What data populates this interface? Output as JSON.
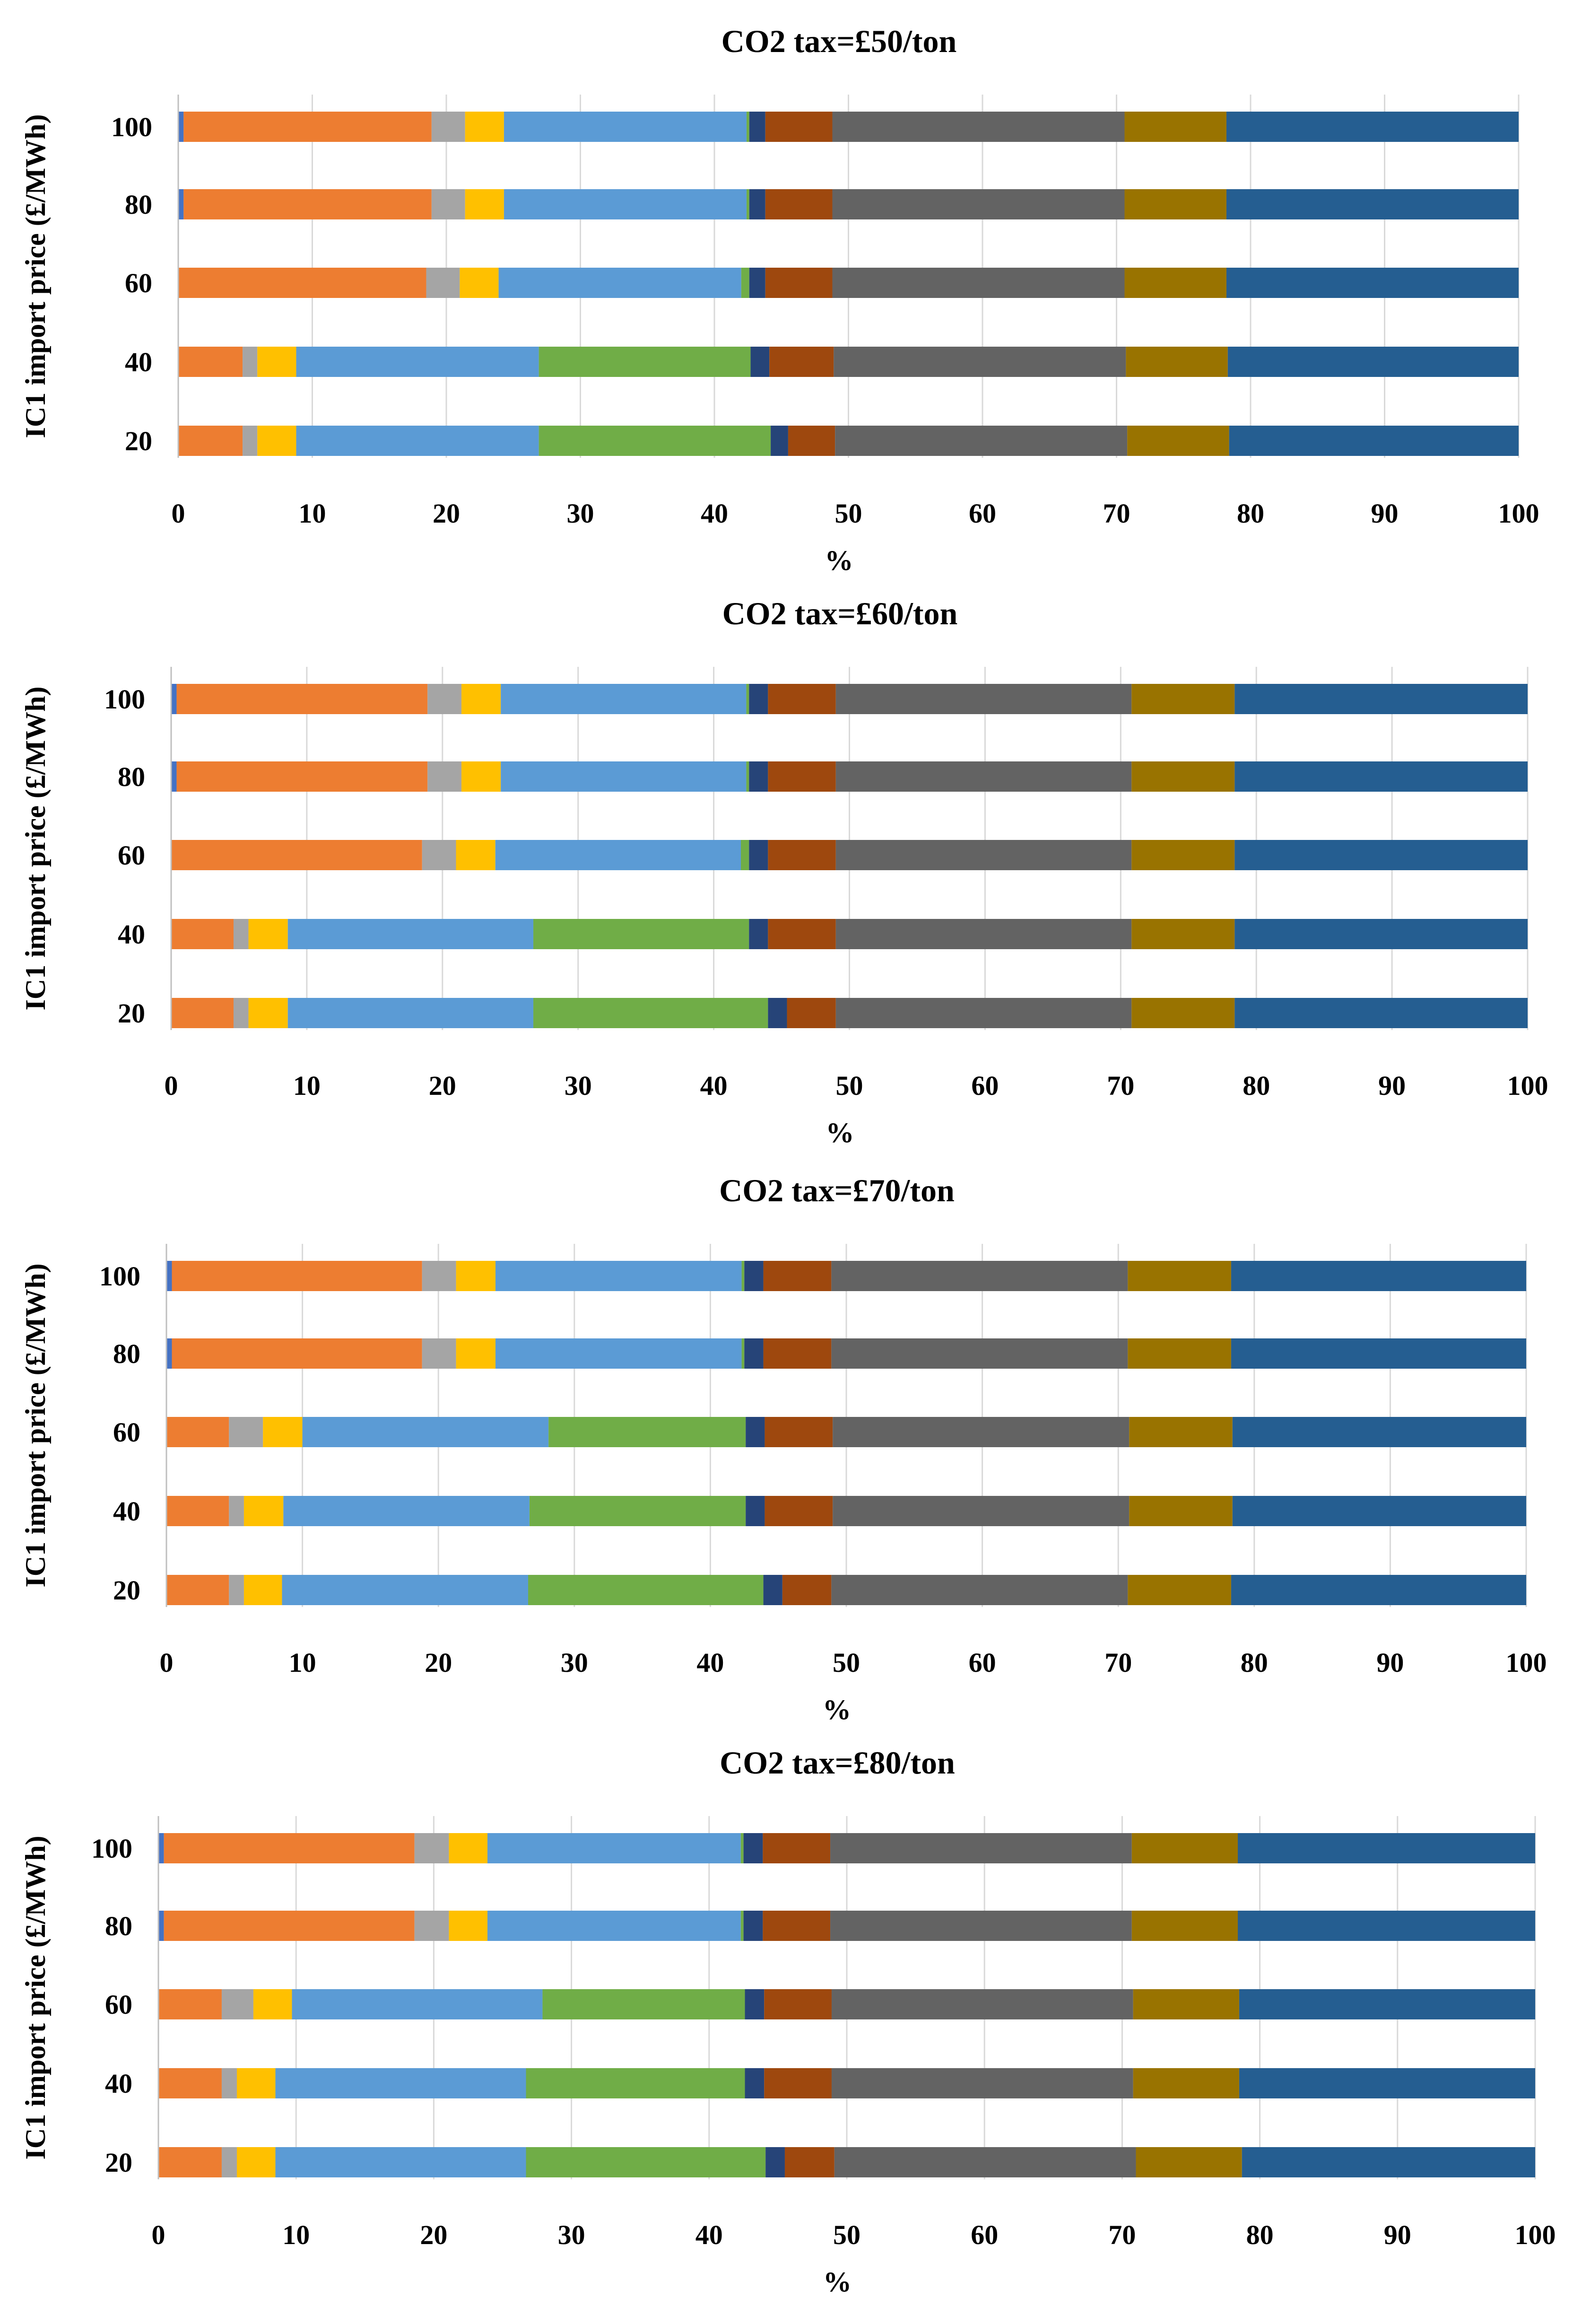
{
  "series_colors": [
    "#4472C4",
    "#ED7D31",
    "#A5A5A5",
    "#FFC000",
    "#5B9BD5",
    "#70AD47",
    "#264478",
    "#9E480E",
    "#636363",
    "#997300",
    "#255E91"
  ],
  "chart_data": [
    {
      "type": "bar",
      "orientation": "horizontal",
      "stacked": true,
      "title": "CO2 tax=£50/ton",
      "xlabel": "%",
      "ylabel": "IC1 import price  (£/MWh)",
      "xlim": [
        0,
        100
      ],
      "xticks": [
        "0",
        "10",
        "20",
        "30",
        "40",
        "50",
        "60",
        "70",
        "80",
        "90",
        "100"
      ],
      "categories": [
        "100",
        "80",
        "60",
        "40",
        "20"
      ],
      "grid": "vertical",
      "segments": [
        [
          0.4,
          18.5,
          2.5,
          2.9,
          18.1,
          0.2,
          1.2,
          5.0,
          21.8,
          7.6,
          21.8
        ],
        [
          0.4,
          18.5,
          2.5,
          2.9,
          18.1,
          0.2,
          1.2,
          5.0,
          21.8,
          7.6,
          21.8
        ],
        [
          0,
          18.5,
          2.5,
          2.9,
          18.1,
          0.6,
          1.2,
          5.0,
          21.8,
          7.6,
          21.8
        ],
        [
          0,
          4.8,
          1.1,
          2.9,
          18.1,
          15.8,
          1.4,
          4.8,
          21.8,
          7.6,
          21.7
        ],
        [
          0,
          4.8,
          1.1,
          2.9,
          18.1,
          17.3,
          1.3,
          3.5,
          21.8,
          7.6,
          21.6
        ]
      ]
    },
    {
      "type": "bar",
      "orientation": "horizontal",
      "stacked": true,
      "title": "CO2 tax=£60/ton",
      "xlabel": "%",
      "ylabel": "IC1 import price  (£/MWh)",
      "xlim": [
        0,
        100
      ],
      "xticks": [
        "0",
        "10",
        "20",
        "30",
        "40",
        "50",
        "60",
        "70",
        "80",
        "90",
        "100"
      ],
      "categories": [
        "100",
        "80",
        "60",
        "40",
        "20"
      ],
      "grid": "vertical",
      "segments": [
        [
          0.4,
          18.5,
          2.5,
          2.9,
          18.1,
          0.2,
          1.4,
          5.0,
          21.8,
          7.6,
          21.6
        ],
        [
          0.4,
          18.5,
          2.5,
          2.9,
          18.1,
          0.2,
          1.4,
          5.0,
          21.8,
          7.6,
          21.6
        ],
        [
          0,
          18.5,
          2.5,
          2.9,
          18.1,
          0.6,
          1.4,
          5.0,
          21.8,
          7.6,
          21.6
        ],
        [
          0,
          4.6,
          1.1,
          2.9,
          18.1,
          15.9,
          1.4,
          5.0,
          21.8,
          7.6,
          21.6
        ],
        [
          0,
          4.6,
          1.1,
          2.9,
          18.1,
          17.3,
          1.4,
          3.6,
          21.8,
          7.6,
          21.6
        ]
      ]
    },
    {
      "type": "bar",
      "orientation": "horizontal",
      "stacked": true,
      "title": "CO2 tax=£70/ton",
      "xlabel": "%",
      "ylabel": "IC1 import price  (£/MWh)",
      "xlim": [
        0,
        100
      ],
      "xticks": [
        "0",
        "10",
        "20",
        "30",
        "40",
        "50",
        "60",
        "70",
        "80",
        "90",
        "100"
      ],
      "categories": [
        "100",
        "80",
        "60",
        "40",
        "20"
      ],
      "grid": "vertical",
      "segments": [
        [
          0.4,
          18.4,
          2.5,
          2.9,
          18.1,
          0.2,
          1.4,
          5.0,
          21.8,
          7.6,
          21.7
        ],
        [
          0.4,
          18.4,
          2.5,
          2.9,
          18.1,
          0.2,
          1.4,
          5.0,
          21.8,
          7.6,
          21.7
        ],
        [
          0,
          4.6,
          2.5,
          2.9,
          18.1,
          14.5,
          1.4,
          5.0,
          21.8,
          7.6,
          21.6
        ],
        [
          0,
          4.6,
          1.1,
          2.9,
          18.1,
          15.9,
          1.4,
          5.0,
          21.8,
          7.6,
          21.6
        ],
        [
          0,
          4.6,
          1.1,
          2.8,
          18.1,
          17.3,
          1.4,
          3.6,
          21.8,
          7.6,
          21.7
        ]
      ]
    },
    {
      "type": "bar",
      "orientation": "horizontal",
      "stacked": true,
      "title": "CO2 tax=£80/ton",
      "xlabel": "%",
      "ylabel": "IC1 import price  (£/MWh)",
      "xlim": [
        0,
        100
      ],
      "xticks": [
        "0",
        "10",
        "20",
        "30",
        "40",
        "50",
        "60",
        "70",
        "80",
        "90",
        "100"
      ],
      "categories": [
        "100",
        "80",
        "60",
        "40",
        "20"
      ],
      "grid": "vertical",
      "segments": [
        [
          0.4,
          18.2,
          2.5,
          2.8,
          18.4,
          0.2,
          1.4,
          4.9,
          21.9,
          7.7,
          21.6
        ],
        [
          0.4,
          18.2,
          2.5,
          2.8,
          18.4,
          0.2,
          1.4,
          4.9,
          21.9,
          7.7,
          21.6
        ],
        [
          0,
          4.6,
          2.3,
          2.8,
          18.2,
          14.7,
          1.4,
          4.9,
          21.9,
          7.7,
          21.5
        ],
        [
          0,
          4.6,
          1.1,
          2.8,
          18.2,
          15.9,
          1.4,
          4.9,
          21.9,
          7.7,
          21.5
        ],
        [
          0,
          4.6,
          1.1,
          2.8,
          18.2,
          17.4,
          1.4,
          3.6,
          21.9,
          7.7,
          21.3
        ]
      ]
    }
  ]
}
